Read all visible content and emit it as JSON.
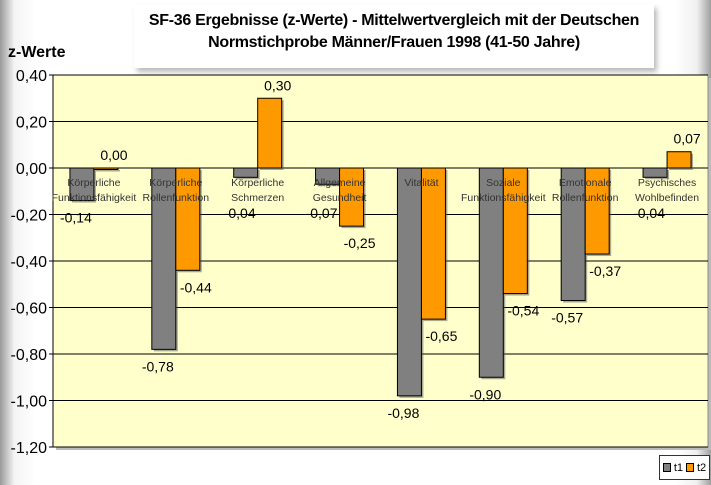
{
  "chart_data": {
    "type": "bar",
    "title": "SF-36 Ergebnisse (z-Werte) - Mittelwertvergleich mit der Deutschen",
    "subtitle": "Normstichprobe Männer/Frauen 1998 (41-50 Jahre)",
    "ylabel": "z-Werte",
    "xlabel": "",
    "ylim": [
      -1.2,
      0.4
    ],
    "yticks": [
      "0,40",
      "0,20",
      "0,00",
      "-0,20",
      "-0,40",
      "-0,60",
      "-0,80",
      "-1,00",
      "-1,20"
    ],
    "categories": [
      [
        "Körperliche",
        "Funktionsfähigkeit"
      ],
      [
        "Körperliche",
        "Rollenfunktion"
      ],
      [
        "Körperliche",
        "Schmerzen"
      ],
      [
        "Allgemeine",
        "Gesundheit"
      ],
      [
        "Vitalität"
      ],
      [
        "Soziale",
        "Funktionsfähigkeit"
      ],
      [
        "Emotionale",
        "Rollenfunktion"
      ],
      [
        "Psychisches",
        "Wohlbefinden"
      ]
    ],
    "series": [
      {
        "name": "t1",
        "color": "#808080",
        "values": [
          -0.14,
          -0.78,
          -0.04,
          -0.07,
          -0.98,
          -0.9,
          -0.57,
          -0.04
        ],
        "labels": [
          "-0,14",
          "-0,78",
          "-0,04",
          "-0,07",
          "-0,98",
          "-0,90",
          "-0,57",
          "-0,04"
        ]
      },
      {
        "name": "t2",
        "color": "#ff9900",
        "values": [
          0.0,
          -0.44,
          0.3,
          -0.25,
          -0.65,
          -0.54,
          -0.37,
          0.07
        ],
        "labels": [
          "0,00",
          "-0,44",
          "0,30",
          "-0,25",
          "-0,65",
          "-0,54",
          "-0,37",
          "0,07"
        ]
      }
    ],
    "grid": true,
    "legend_position": "bottom-right",
    "plot_background": "#ffffcc"
  }
}
